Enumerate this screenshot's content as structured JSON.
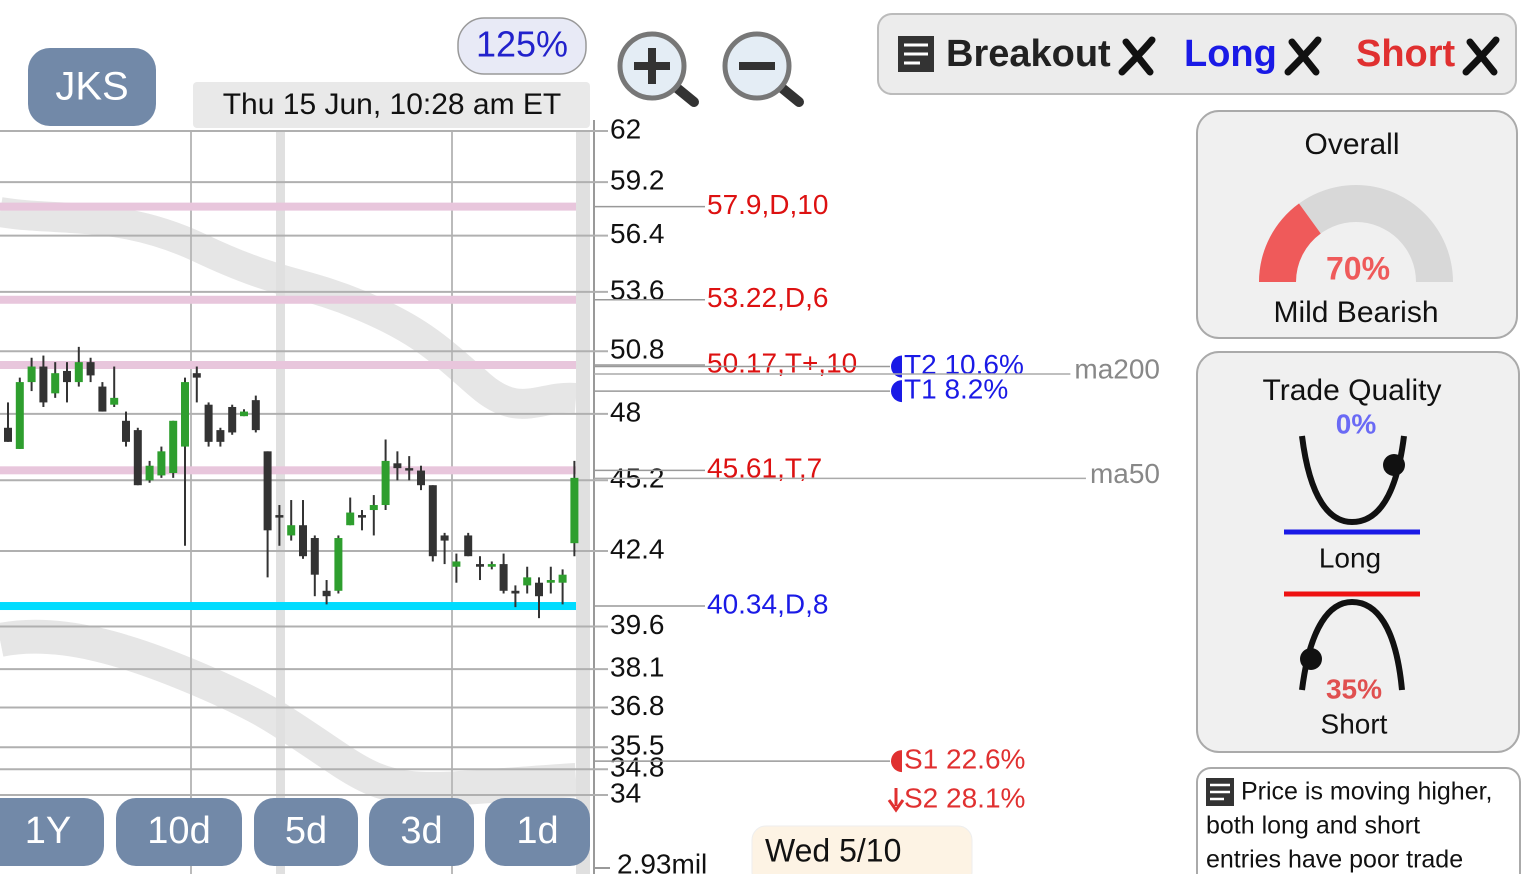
{
  "ticker": "JKS",
  "zoom": "125%",
  "timestamp": "Thu 15 Jun, 10:28 am ET",
  "signal_buttons": [
    {
      "label": "Breakout",
      "color": "#222222"
    },
    {
      "label": "Long",
      "color": "#1a1ae6"
    },
    {
      "label": "Short",
      "color": "#e03030"
    }
  ],
  "price_chart": {
    "type": "candlestick",
    "scale": "log",
    "ylim": [
      34,
      62
    ],
    "yticks": [
      62,
      59.2,
      56.4,
      53.6,
      50.8,
      48,
      45.2,
      42.4,
      39.6,
      38.1,
      36.8,
      35.5,
      34.8,
      34
    ],
    "grid": true,
    "up_color": "#2e9e2e",
    "down_color": "#333333",
    "candles": [
      {
        "o": 47.4,
        "h": 48.5,
        "l": 46.8,
        "c": 46.8
      },
      {
        "o": 46.5,
        "h": 49.6,
        "l": 46.5,
        "c": 49.4
      },
      {
        "o": 49.4,
        "h": 50.5,
        "l": 49.0,
        "c": 50.1
      },
      {
        "o": 50.1,
        "h": 50.6,
        "l": 48.3,
        "c": 48.5
      },
      {
        "o": 48.9,
        "h": 50.3,
        "l": 48.7,
        "c": 49.8
      },
      {
        "o": 49.9,
        "h": 50.3,
        "l": 48.5,
        "c": 49.4
      },
      {
        "o": 49.4,
        "h": 51.0,
        "l": 49.2,
        "c": 50.3
      },
      {
        "o": 50.3,
        "h": 50.5,
        "l": 49.4,
        "c": 49.7
      },
      {
        "o": 49.2,
        "h": 49.4,
        "l": 48.1,
        "c": 48.1
      },
      {
        "o": 48.4,
        "h": 50.1,
        "l": 48.3,
        "c": 48.7
      },
      {
        "o": 47.7,
        "h": 48.1,
        "l": 46.6,
        "c": 46.8
      },
      {
        "o": 47.3,
        "h": 47.4,
        "l": 45.0,
        "c": 45.0
      },
      {
        "o": 45.2,
        "h": 46.0,
        "l": 45.1,
        "c": 45.8
      },
      {
        "o": 45.4,
        "h": 46.6,
        "l": 45.3,
        "c": 46.4
      },
      {
        "o": 45.5,
        "h": 47.7,
        "l": 45.3,
        "c": 47.7
      },
      {
        "o": 46.6,
        "h": 49.6,
        "l": 42.6,
        "c": 49.4
      },
      {
        "o": 49.8,
        "h": 50.1,
        "l": 48.5,
        "c": 49.6
      },
      {
        "o": 48.4,
        "h": 48.5,
        "l": 46.6,
        "c": 46.8
      },
      {
        "o": 47.3,
        "h": 47.4,
        "l": 46.6,
        "c": 46.8
      },
      {
        "o": 48.3,
        "h": 48.4,
        "l": 47.1,
        "c": 47.2
      },
      {
        "o": 47.9,
        "h": 48.2,
        "l": 47.9,
        "c": 48.1
      },
      {
        "o": 48.6,
        "h": 48.8,
        "l": 47.2,
        "c": 47.3
      },
      {
        "o": 46.4,
        "h": 46.4,
        "l": 41.4,
        "c": 43.2
      },
      {
        "o": 43.8,
        "h": 44.2,
        "l": 42.6,
        "c": 43.7
      },
      {
        "o": 43.0,
        "h": 44.4,
        "l": 42.8,
        "c": 43.4
      },
      {
        "o": 43.4,
        "h": 44.4,
        "l": 42.1,
        "c": 42.2
      },
      {
        "o": 42.9,
        "h": 43.0,
        "l": 40.7,
        "c": 41.5
      },
      {
        "o": 40.9,
        "h": 41.3,
        "l": 40.4,
        "c": 40.7
      },
      {
        "o": 40.9,
        "h": 43.0,
        "l": 40.8,
        "c": 42.9
      },
      {
        "o": 43.4,
        "h": 44.5,
        "l": 43.4,
        "c": 43.9
      },
      {
        "o": 43.8,
        "h": 44.0,
        "l": 43.2,
        "c": 43.7
      },
      {
        "o": 44.0,
        "h": 44.6,
        "l": 43.0,
        "c": 44.2
      },
      {
        "o": 44.2,
        "h": 46.9,
        "l": 44.0,
        "c": 46.0
      },
      {
        "o": 45.9,
        "h": 46.4,
        "l": 45.2,
        "c": 45.7
      },
      {
        "o": 45.7,
        "h": 46.2,
        "l": 45.2,
        "c": 45.6
      },
      {
        "o": 45.6,
        "h": 45.8,
        "l": 44.8,
        "c": 45.0
      },
      {
        "o": 45.0,
        "h": 45.0,
        "l": 42.0,
        "c": 42.2
      },
      {
        "o": 43.0,
        "h": 43.1,
        "l": 41.9,
        "c": 42.8
      },
      {
        "o": 41.8,
        "h": 42.3,
        "l": 41.2,
        "c": 42.0
      },
      {
        "o": 43.0,
        "h": 43.1,
        "l": 42.2,
        "c": 42.2
      },
      {
        "o": 41.9,
        "h": 42.2,
        "l": 41.3,
        "c": 41.8
      },
      {
        "o": 41.8,
        "h": 42.0,
        "l": 41.7,
        "c": 41.9
      },
      {
        "o": 41.9,
        "h": 42.3,
        "l": 40.8,
        "c": 40.9
      },
      {
        "o": 40.9,
        "h": 41.1,
        "l": 40.3,
        "c": 40.8
      },
      {
        "o": 41.1,
        "h": 41.8,
        "l": 40.8,
        "c": 41.4
      },
      {
        "o": 41.2,
        "h": 41.4,
        "l": 39.9,
        "c": 40.7
      },
      {
        "o": 41.2,
        "h": 41.8,
        "l": 40.8,
        "c": 41.3
      },
      {
        "o": 41.2,
        "h": 41.7,
        "l": 40.4,
        "c": 41.5
      },
      {
        "o": 42.7,
        "h": 46.0,
        "l": 42.2,
        "c": 45.3
      }
    ],
    "levels": [
      {
        "value": 57.9,
        "label": "57.9,D,10",
        "color": "#e8c6dc",
        "label_color": "#dd1111"
      },
      {
        "value": 53.22,
        "label": "53.22,D,6",
        "color": "#e8c6dc",
        "label_color": "#dd1111"
      },
      {
        "value": 50.17,
        "label": "50.17,T+,10",
        "color": "#e8c6dc",
        "label_color": "#dd1111"
      },
      {
        "value": 45.61,
        "label": "45.61,T,7",
        "color": "#e8c6dc",
        "label_color": "#dd1111"
      },
      {
        "value": 40.34,
        "label": "40.34,D,8",
        "color": "#00dcff",
        "label_color": "#1a1ae6"
      }
    ],
    "targets": [
      {
        "price": 50.1,
        "label": "T2 10.6%",
        "color": "#1a1ae6"
      },
      {
        "price": 49.0,
        "label": "T1 8.2%",
        "color": "#1a1ae6"
      },
      {
        "price": 35.06,
        "label": "S1 22.6%",
        "color": "#e03030"
      },
      {
        "price": 32.6,
        "label": "S2 28.1%",
        "color": "#e03030"
      }
    ],
    "moving_averages": [
      {
        "name": "ma200",
        "value": 49.9
      },
      {
        "name": "ma50",
        "value": 45.4
      }
    ],
    "volume_label": "2.93mil",
    "date_label": "Wed 5/10"
  },
  "range_buttons": [
    "1Y",
    "10d",
    "5d",
    "3d",
    "1d"
  ],
  "overall": {
    "title": "Overall",
    "value": 70,
    "value_label": "70%",
    "verdict": "Mild Bearish",
    "color": "#ef5a5a"
  },
  "trade_quality": {
    "title": "Trade Quality",
    "long": {
      "value_label": "0%",
      "label": "Long"
    },
    "short": {
      "value_label": "35%",
      "label": "Short"
    }
  },
  "note_lines": [
    "Price is moving higher,",
    "both long and short",
    "entries have poor trade"
  ]
}
